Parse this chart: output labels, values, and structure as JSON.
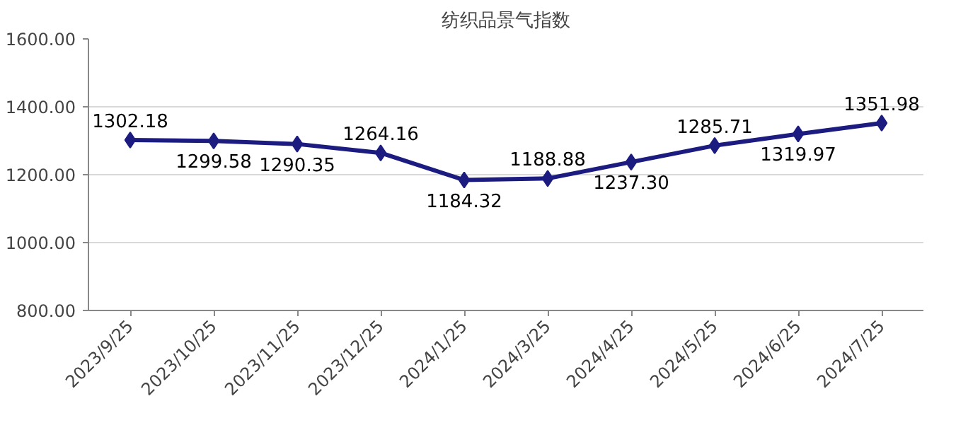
{
  "chart_data": {
    "type": "line",
    "title": "纺织品景气指数",
    "categories": [
      "2023/9/25",
      "2023/10/25",
      "2023/11/25",
      "2023/12/25",
      "2024/1/25",
      "2024/3/25",
      "2024/4/25",
      "2024/5/25",
      "2024/6/25",
      "2024/7/25"
    ],
    "series": [
      {
        "color": "#1c1c80",
        "values": [
          1302.18,
          1299.58,
          1290.35,
          1264.16,
          1184.32,
          1188.88,
          1237.3,
          1285.71,
          1319.97,
          1351.98
        ],
        "value_labels": [
          "1302.18",
          "1299.58",
          "1290.35",
          "1264.16",
          "1184.32",
          "1188.88",
          "1237.30",
          "1285.71",
          "1319.97",
          "1351.98"
        ]
      }
    ],
    "ylim": [
      800,
      1600
    ],
    "yticks": [
      {
        "value": 800,
        "label": "800.00"
      },
      {
        "value": 1000,
        "label": "1000.00"
      },
      {
        "value": 1200,
        "label": "1200.00"
      },
      {
        "value": 1400,
        "label": "1400.00"
      },
      {
        "value": 1600,
        "label": "1600.00"
      }
    ],
    "grid": "y",
    "marker": "diamond",
    "line_style": "solid"
  }
}
